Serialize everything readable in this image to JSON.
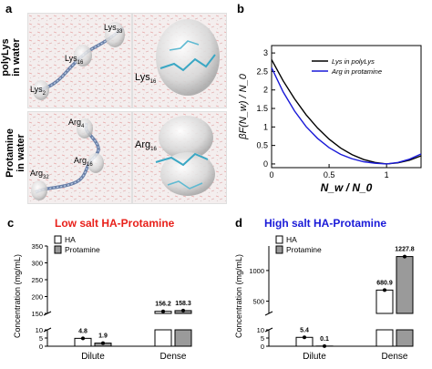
{
  "panel_a": {
    "letter": "a",
    "row_labels": [
      "polyLys\nin water",
      "Protamine\nin water"
    ],
    "polylys_residues": [
      {
        "name": "Lys",
        "sub": "33"
      },
      {
        "name": "Lys",
        "sub": "16"
      },
      {
        "name": "Lys",
        "sub": "2"
      }
    ],
    "polylys_zoom": {
      "name": "Lys",
      "sub": "16"
    },
    "protamine_residues": [
      {
        "name": "Arg",
        "sub": "4"
      },
      {
        "name": "Arg",
        "sub": "16"
      },
      {
        "name": "Arg",
        "sub": "32"
      }
    ],
    "protamine_zoom": {
      "name": "Arg",
      "sub": "16"
    }
  },
  "panel_b": {
    "letter": "b"
  },
  "panel_c": {
    "letter": "c",
    "title": "Low salt HA-Protamine",
    "title_color": "#e8201a"
  },
  "panel_d": {
    "letter": "d",
    "title": "High salt HA-Protamine",
    "title_color": "#1a1ad8"
  },
  "chart_data": [
    {
      "type": "line",
      "panel": "b",
      "xlabel": "N_w / N_0",
      "ylabel": "βF(N_w) / N_0",
      "xlim": [
        0,
        1.3
      ],
      "ylim": [
        -0.1,
        3.2
      ],
      "x_ticks": [
        "0",
        "0.5",
        "1"
      ],
      "y_ticks": [
        "0",
        "0.5",
        "1",
        "1.5",
        "2",
        "2.5",
        "3"
      ],
      "legend_position": "top-right",
      "grid": false,
      "series": [
        {
          "name": "Lys in polyLys",
          "color": "#000000",
          "x": [
            0,
            0.1,
            0.2,
            0.3,
            0.4,
            0.5,
            0.6,
            0.7,
            0.8,
            0.9,
            1.0,
            1.1,
            1.2,
            1.3
          ],
          "y": [
            2.82,
            2.25,
            1.76,
            1.33,
            0.97,
            0.67,
            0.43,
            0.25,
            0.12,
            0.04,
            0.0,
            0.03,
            0.1,
            0.22
          ]
        },
        {
          "name": "Arg in protamine",
          "color": "#1a1ad8",
          "x": [
            0,
            0.1,
            0.2,
            0.3,
            0.4,
            0.5,
            0.6,
            0.7,
            0.8,
            0.9,
            1.0,
            1.1,
            1.2,
            1.3
          ],
          "y": [
            2.6,
            1.95,
            1.43,
            1.01,
            0.69,
            0.44,
            0.26,
            0.14,
            0.06,
            0.02,
            0.0,
            0.04,
            0.13,
            0.27
          ]
        }
      ]
    },
    {
      "type": "bar",
      "panel": "c",
      "categories": [
        "Dilute",
        "Dense"
      ],
      "ylabel": "Concentration (mg/mL)",
      "y_ticks_lower": [
        "0",
        "5",
        "10"
      ],
      "y_ticks_upper": [
        "150",
        "200",
        "250",
        "300",
        "350"
      ],
      "y_break": [
        10,
        150
      ],
      "legend_position": "top-left",
      "series": [
        {
          "name": "HA",
          "color": "#ffffff",
          "values": [
            4.8,
            156.2
          ],
          "labels": [
            "4.8",
            "156.2"
          ]
        },
        {
          "name": "Protamine",
          "color": "#9a9a9a",
          "values": [
            1.9,
            158.3
          ],
          "labels": [
            "1.9",
            "158.3"
          ]
        }
      ]
    },
    {
      "type": "bar",
      "panel": "d",
      "categories": [
        "Dilute",
        "Dense"
      ],
      "ylabel": "Concentration (mg/mL)",
      "y_ticks_lower": [
        "0",
        "5",
        "10"
      ],
      "y_ticks_upper": [
        "500",
        "1000"
      ],
      "y_break": [
        10,
        300
      ],
      "legend_position": "top-left",
      "series": [
        {
          "name": "HA",
          "color": "#ffffff",
          "values": [
            5.4,
            680.9
          ],
          "labels": [
            "5.4",
            "680.9"
          ]
        },
        {
          "name": "Protamine",
          "color": "#9a9a9a",
          "values": [
            0.1,
            1227.8
          ],
          "labels": [
            "0.1",
            "1227.8"
          ]
        }
      ]
    }
  ]
}
